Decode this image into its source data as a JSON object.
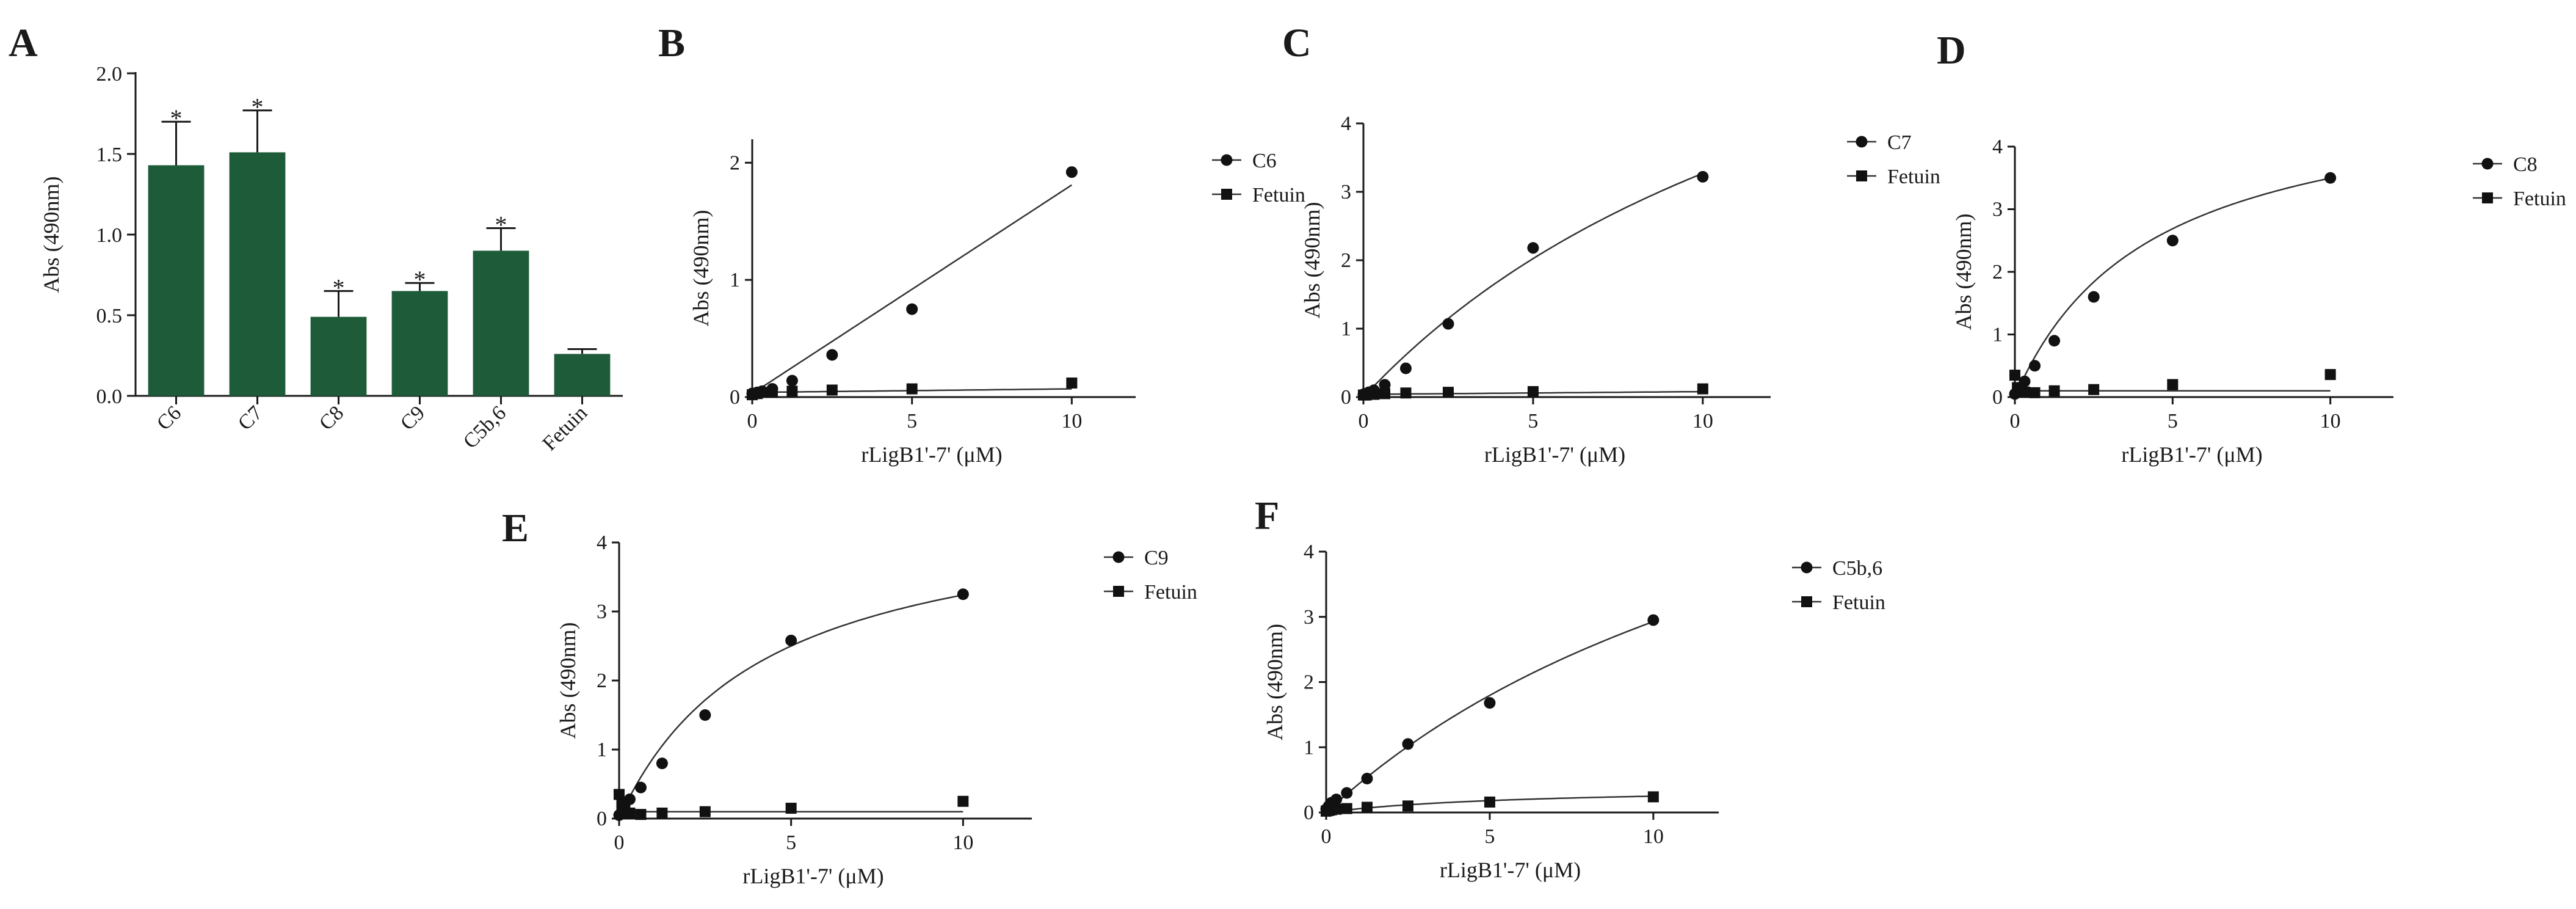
{
  "chart_data": [
    {
      "panel": "A",
      "type": "bar",
      "categories": [
        "C6",
        "C7",
        "C8",
        "C9",
        "C5b,6",
        "Fetuin"
      ],
      "values": [
        1.43,
        1.51,
        0.49,
        0.65,
        0.9,
        0.26
      ],
      "errors": [
        0.27,
        0.26,
        0.16,
        0.05,
        0.14,
        0.03
      ],
      "annotations": [
        "*",
        "*",
        "*",
        "*",
        "*",
        ""
      ],
      "ylabel": "Abs (490nm)",
      "xlabel": "",
      "ylim": [
        0,
        2.0
      ],
      "yticks": [
        "0.0",
        "0.5",
        "1.0",
        "1.5",
        "2.0"
      ],
      "bar_color": "#1e5c39"
    },
    {
      "panel": "B",
      "type": "scatter",
      "xlabel": "rLigB1'-7' (μM)",
      "ylabel": "Abs (490nm)",
      "xlim": [
        0,
        12
      ],
      "ylim": [
        0,
        2.2
      ],
      "xticks": [
        "0",
        "5",
        "10"
      ],
      "yticks": [
        "0",
        "1",
        "2"
      ],
      "series": [
        {
          "name": "C6",
          "marker": "circle",
          "x": [
            0,
            0.08,
            0.16,
            0.31,
            0.63,
            1.25,
            2.5,
            5,
            10
          ],
          "y": [
            0.03,
            0.03,
            0.04,
            0.05,
            0.07,
            0.14,
            0.36,
            0.75,
            1.92
          ],
          "fit": "linear",
          "fit_params": [
            0.03,
            0.178
          ]
        },
        {
          "name": "Fetuin",
          "marker": "square",
          "x": [
            0,
            0.08,
            0.16,
            0.31,
            0.63,
            1.25,
            2.5,
            5,
            10
          ],
          "y": [
            0.02,
            0.03,
            0.03,
            0.04,
            0.04,
            0.05,
            0.06,
            0.07,
            0.12
          ],
          "fit": "linear",
          "fit_params": [
            0.04,
            0.003
          ]
        }
      ]
    },
    {
      "panel": "C",
      "type": "scatter",
      "xlabel": "rLigB1'-7' (μM)",
      "ylabel": "Abs (490nm)",
      "xlim": [
        0,
        12
      ],
      "ylim": [
        0,
        4
      ],
      "xticks": [
        "0",
        "5",
        "10"
      ],
      "yticks": [
        "0",
        "1",
        "2",
        "3",
        "4"
      ],
      "series": [
        {
          "name": "C7",
          "marker": "circle",
          "x": [
            0,
            0.08,
            0.16,
            0.31,
            0.63,
            1.25,
            2.5,
            5,
            10
          ],
          "y": [
            0.04,
            0.05,
            0.07,
            0.1,
            0.18,
            0.42,
            1.07,
            2.18,
            3.22
          ],
          "fit": "hyperbola",
          "fit_params": [
            8.5,
            16.0
          ]
        },
        {
          "name": "Fetuin",
          "marker": "square",
          "x": [
            0,
            0.08,
            0.16,
            0.31,
            0.63,
            1.25,
            2.5,
            5,
            10
          ],
          "y": [
            0.03,
            0.03,
            0.04,
            0.04,
            0.05,
            0.06,
            0.07,
            0.08,
            0.12
          ],
          "fit": "linear",
          "fit_params": [
            0.04,
            0.004
          ]
        }
      ]
    },
    {
      "panel": "D",
      "type": "scatter",
      "xlabel": "rLigB1'-7' (μM)",
      "ylabel": "Abs (490nm)",
      "xlim": [
        0,
        12
      ],
      "ylim": [
        0,
        4
      ],
      "xticks": [
        "0",
        "5",
        "10"
      ],
      "yticks": [
        "0",
        "1",
        "2",
        "3",
        "4"
      ],
      "series": [
        {
          "name": "C8",
          "marker": "circle",
          "x": [
            0,
            0.08,
            0.16,
            0.31,
            0.63,
            1.25,
            2.5,
            5,
            10
          ],
          "y": [
            0.05,
            0.1,
            0.15,
            0.25,
            0.5,
            0.9,
            1.6,
            2.5,
            3.5
          ],
          "fit": "hyperbola",
          "fit_params": [
            5.0,
            4.3
          ]
        },
        {
          "name": "Fetuin",
          "marker": "square",
          "x": [
            0,
            0.08,
            0.16,
            0.31,
            0.63,
            1.25,
            2.5,
            5,
            10
          ],
          "y": [
            0.35,
            0.15,
            0.1,
            0.08,
            0.07,
            0.1,
            0.12,
            0.2,
            0.36
          ],
          "fit": "linear",
          "fit_params": [
            0.1,
            0.0
          ]
        }
      ]
    },
    {
      "panel": "E",
      "type": "scatter",
      "xlabel": "rLigB1'-7' (μM)",
      "ylabel": "Abs (490nm)",
      "xlim": [
        0,
        12
      ],
      "ylim": [
        0,
        4
      ],
      "xticks": [
        "0",
        "5",
        "10"
      ],
      "yticks": [
        "0",
        "1",
        "2",
        "3",
        "4"
      ],
      "series": [
        {
          "name": "C9",
          "marker": "circle",
          "x": [
            0,
            0.08,
            0.16,
            0.31,
            0.63,
            1.25,
            2.5,
            5,
            10
          ],
          "y": [
            0.05,
            0.1,
            0.18,
            0.28,
            0.45,
            0.8,
            1.5,
            2.58,
            3.25
          ],
          "fit": "hyperbola",
          "fit_params": [
            4.6,
            4.2
          ]
        },
        {
          "name": "Fetuin",
          "marker": "square",
          "x": [
            0,
            0.08,
            0.16,
            0.31,
            0.63,
            1.25,
            2.5,
            5,
            10
          ],
          "y": [
            0.35,
            0.2,
            0.12,
            0.08,
            0.06,
            0.08,
            0.1,
            0.15,
            0.25
          ],
          "fit": "linear",
          "fit_params": [
            0.1,
            0.0
          ]
        }
      ]
    },
    {
      "panel": "F",
      "type": "scatter",
      "xlabel": "rLigB1'-7' (μM)",
      "ylabel": "Abs (490nm)",
      "xlim": [
        0,
        12
      ],
      "ylim": [
        0,
        4
      ],
      "xticks": [
        "0",
        "5",
        "10"
      ],
      "yticks": [
        "0",
        "1",
        "2",
        "3",
        "4"
      ],
      "series": [
        {
          "name": "C5b,6",
          "marker": "circle",
          "x": [
            0,
            0.08,
            0.16,
            0.31,
            0.63,
            1.25,
            2.5,
            5,
            10
          ],
          "y": [
            0.05,
            0.1,
            0.15,
            0.2,
            0.3,
            0.52,
            1.05,
            1.68,
            2.95
          ],
          "fit": "hyperbola",
          "fit_params": [
            7.9,
            17.0
          ]
        },
        {
          "name": "Fetuin",
          "marker": "square",
          "x": [
            0,
            0.08,
            0.16,
            0.31,
            0.63,
            1.25,
            2.5,
            5,
            10
          ],
          "y": [
            0.02,
            0.03,
            0.04,
            0.05,
            0.06,
            0.08,
            0.1,
            0.16,
            0.24
          ],
          "fit": "hyperbola",
          "fit_params": [
            0.4,
            6.0
          ]
        }
      ]
    }
  ]
}
